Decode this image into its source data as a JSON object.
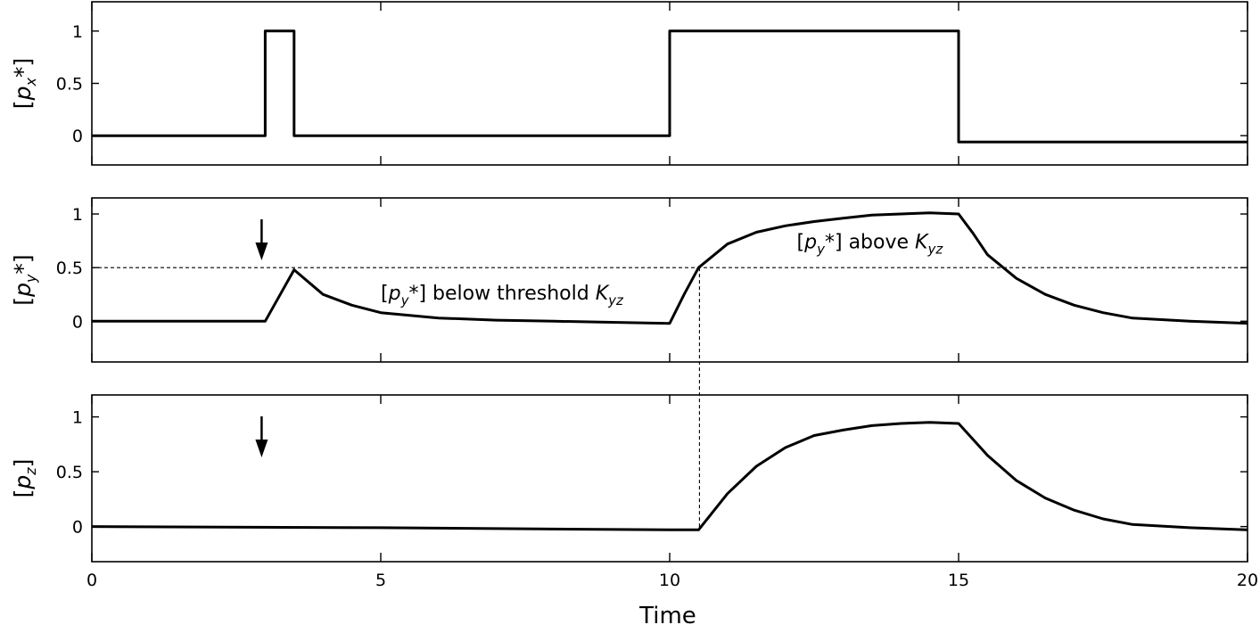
{
  "chart_data": {
    "type": "line",
    "x_axis": {
      "label": "Time",
      "range": [
        0,
        20
      ],
      "ticks": [
        0,
        5,
        10,
        15,
        20
      ],
      "tick_labels": [
        "0",
        "5",
        "10",
        "15",
        "20"
      ]
    },
    "panels": [
      {
        "id": "px",
        "ylabel": {
          "pre": "[",
          "var": "p",
          "sub": "x",
          "post": "*]"
        },
        "yrange": [
          -0.28,
          1.28
        ],
        "yticks": [
          0,
          0.5,
          1
        ],
        "ytick_labels": [
          "0",
          "0.5",
          "1"
        ],
        "series": [
          {
            "x": [
              0,
              3,
              3,
              3.5,
              3.5,
              10,
              10,
              15,
              15,
              20
            ],
            "y": [
              0,
              0,
              1,
              1,
              0,
              0,
              1,
              1,
              -0.06,
              -0.06
            ]
          }
        ]
      },
      {
        "id": "py",
        "ylabel": {
          "pre": "[",
          "var": "p",
          "sub": "y",
          "post": "*]"
        },
        "yrange": [
          -0.38,
          1.15
        ],
        "yticks": [
          0,
          0.5,
          1
        ],
        "ytick_labels": [
          "0",
          "0.5",
          "1"
        ],
        "threshold": 0.5,
        "arrow_x": 3,
        "series": [
          {
            "x": [
              0,
              3,
              3.5,
              4,
              4.5,
              5,
              6,
              7,
              8,
              9,
              10,
              10.25,
              10.5,
              11,
              11.5,
              12,
              12.5,
              13,
              13.5,
              14,
              14.5,
              15,
              15.25,
              15.5,
              16,
              16.5,
              17,
              17.5,
              18,
              19,
              20
            ],
            "y": [
              0,
              0,
              0.48,
              0.25,
              0.15,
              0.08,
              0.03,
              0.01,
              0,
              -0.01,
              -0.02,
              0.25,
              0.5,
              0.72,
              0.83,
              0.89,
              0.93,
              0.96,
              0.99,
              1.0,
              1.01,
              1.0,
              0.82,
              0.62,
              0.4,
              0.25,
              0.15,
              0.08,
              0.03,
              0,
              -0.02
            ]
          }
        ],
        "annotations": [
          {
            "pre": "[",
            "var": "p",
            "sub": "y",
            "mid": "*] below threshold ",
            "kvar": "K",
            "ksub": "yz",
            "x": 5.0,
            "y": 0.2
          },
          {
            "pre": "[",
            "var": "p",
            "sub": "y",
            "mid": "*] above ",
            "kvar": "K",
            "ksub": "yz",
            "x": 12.2,
            "y": 0.68
          }
        ]
      },
      {
        "id": "pz",
        "ylabel": {
          "pre": "[",
          "var": "p",
          "sub": "z",
          "post": "]"
        },
        "yrange": [
          -0.32,
          1.2
        ],
        "yticks": [
          0,
          0.5,
          1
        ],
        "ytick_labels": [
          "0",
          "0.5",
          "1"
        ],
        "arrow_x": 3,
        "series": [
          {
            "x": [
              0,
              5,
              10,
              10.5,
              11,
              11.5,
              12,
              12.5,
              13,
              13.5,
              14,
              14.5,
              15,
              15.5,
              16,
              16.5,
              17,
              17.5,
              18,
              19,
              20
            ],
            "y": [
              0,
              -0.01,
              -0.03,
              -0.03,
              0.3,
              0.55,
              0.72,
              0.83,
              0.88,
              0.92,
              0.94,
              0.95,
              0.94,
              0.65,
              0.42,
              0.26,
              0.15,
              0.07,
              0.02,
              -0.01,
              -0.03
            ]
          }
        ]
      }
    ],
    "crossing_x": 10.5
  }
}
